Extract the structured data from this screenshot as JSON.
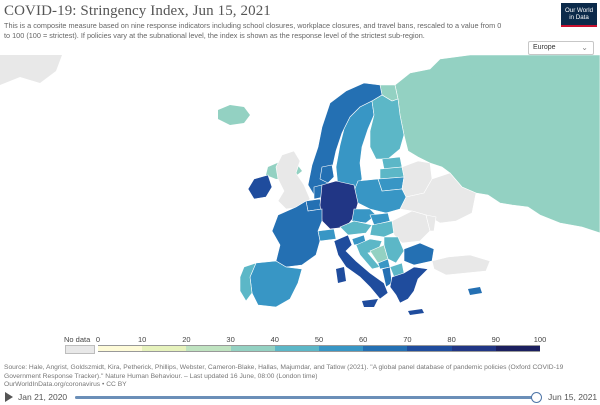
{
  "title": "COVID-19: Stringency Index, Jun 15, 2021",
  "subtitle": "This is a composite measure based on nine response indicators including school closures, workplace closures, and travel bans, rescaled to a value from 0 to 100 (100 = strictest). If policies vary at the subnational level, the index is shown as the response level of the strictest sub-region.",
  "logo": {
    "line1": "Our World",
    "line2": "in Data"
  },
  "region_select": {
    "value": "Europe"
  },
  "legend": {
    "nodata_label": "No data",
    "ticks": [
      "0",
      "10",
      "20",
      "30",
      "40",
      "50",
      "60",
      "70",
      "80",
      "90",
      "100"
    ],
    "colors": [
      "#fefbd8",
      "#e6f2bc",
      "#bfe3c0",
      "#93d1c2",
      "#5cb7c7",
      "#3896c5",
      "#2470b3",
      "#1f4c9d",
      "#213685",
      "#1b1f5f"
    ],
    "nodata_color": "#e8e8e8"
  },
  "colors": {
    "land_empty": "#ffffff",
    "border": "#ffffff",
    "nodata": "#e8e8e8",
    "water": "#ffffff"
  },
  "source": "Source: Hale, Angrist, Goldszmidt, Kira, Petherick, Phillips, Webster, Cameron-Blake, Hallas, Majumdar, and Tatlow (2021). \"A global panel database of pandemic policies (Oxford COVID-19 Government Response Tracker).\" Nature Human Behaviour. – Last updated 16 June, 08:00 (London time)",
  "source_url": "OurWorldInData.org/coronavirus • CC BY",
  "timeline": {
    "start_label": "Jan 21, 2020",
    "end_label": "Jun 15, 2021",
    "position": 1.0
  }
}
